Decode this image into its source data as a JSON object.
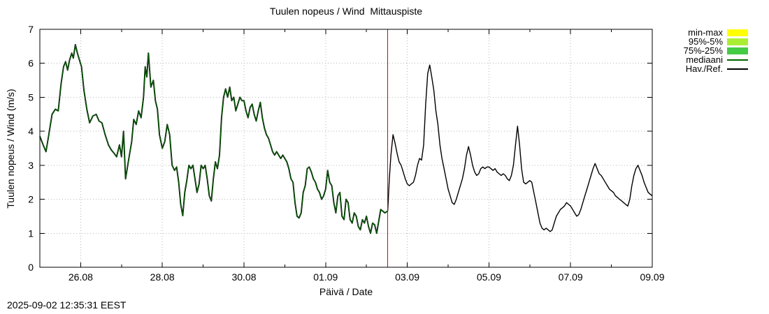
{
  "timestamp": "2025-09-02 12:35:31 EEST",
  "chart_data": {
    "type": "line",
    "title": "Tuulen nopeus / Wind  Mittauspiste",
    "xlabel": "Päivä / Date",
    "ylabel": "Tuulen nopeus / Wind (m/s)",
    "ylim": [
      0,
      7
    ],
    "yticks": [
      0,
      1,
      2,
      3,
      4,
      5,
      6,
      7
    ],
    "x_range_days": [
      0,
      15
    ],
    "x_tick_days": [
      1,
      3,
      5,
      7,
      9,
      11,
      13,
      15
    ],
    "x_tick_labels": [
      "26.08",
      "28.08",
      "30.08",
      "01.09",
      "03.09",
      "05.09",
      "07.09",
      "09.09"
    ],
    "grid": true,
    "grid_color": "#b8b8b8",
    "now_line_day": 8.52,
    "now_line_color": "#dd0000",
    "legend_position": "top-right-outside",
    "legend": [
      {
        "label": "min-max",
        "color": "#ffff00",
        "style": "band"
      },
      {
        "label": "95%-5%",
        "color": "#aaee33",
        "style": "band"
      },
      {
        "label": "75%-25%",
        "color": "#44cc44",
        "style": "band"
      },
      {
        "label": "mediaani",
        "color": "#006400",
        "style": "line"
      },
      {
        "label": "Hav./Ref.",
        "color": "#000000",
        "style": "line"
      }
    ],
    "series": [
      {
        "name": "wind_speed_m_s",
        "observation_color": "#000000",
        "median_overlay_color": "#006400",
        "forecast_color": "#000000",
        "obs_end_day": 8.52,
        "points": [
          [
            0.0,
            3.85
          ],
          [
            0.08,
            3.6
          ],
          [
            0.15,
            3.4
          ],
          [
            0.22,
            3.9
          ],
          [
            0.3,
            4.5
          ],
          [
            0.38,
            4.65
          ],
          [
            0.45,
            4.6
          ],
          [
            0.52,
            5.4
          ],
          [
            0.58,
            5.9
          ],
          [
            0.63,
            6.05
          ],
          [
            0.68,
            5.8
          ],
          [
            0.73,
            6.1
          ],
          [
            0.78,
            6.3
          ],
          [
            0.82,
            6.15
          ],
          [
            0.87,
            6.55
          ],
          [
            0.92,
            6.3
          ],
          [
            0.97,
            6.1
          ],
          [
            1.02,
            5.9
          ],
          [
            1.08,
            5.2
          ],
          [
            1.15,
            4.65
          ],
          [
            1.22,
            4.25
          ],
          [
            1.3,
            4.45
          ],
          [
            1.38,
            4.5
          ],
          [
            1.45,
            4.3
          ],
          [
            1.52,
            4.25
          ],
          [
            1.6,
            3.9
          ],
          [
            1.68,
            3.6
          ],
          [
            1.75,
            3.45
          ],
          [
            1.82,
            3.35
          ],
          [
            1.88,
            3.25
          ],
          [
            1.95,
            3.6
          ],
          [
            2.0,
            3.25
          ],
          [
            2.05,
            4.0
          ],
          [
            2.1,
            2.6
          ],
          [
            2.18,
            3.2
          ],
          [
            2.25,
            3.7
          ],
          [
            2.3,
            4.35
          ],
          [
            2.36,
            4.2
          ],
          [
            2.42,
            4.6
          ],
          [
            2.48,
            4.4
          ],
          [
            2.54,
            5.0
          ],
          [
            2.58,
            5.9
          ],
          [
            2.62,
            5.6
          ],
          [
            2.66,
            6.3
          ],
          [
            2.72,
            5.3
          ],
          [
            2.78,
            5.5
          ],
          [
            2.83,
            4.9
          ],
          [
            2.88,
            4.65
          ],
          [
            2.93,
            3.9
          ],
          [
            3.0,
            3.5
          ],
          [
            3.06,
            3.7
          ],
          [
            3.12,
            4.2
          ],
          [
            3.18,
            3.9
          ],
          [
            3.24,
            3.0
          ],
          [
            3.3,
            2.85
          ],
          [
            3.35,
            2.95
          ],
          [
            3.4,
            2.5
          ],
          [
            3.45,
            1.85
          ],
          [
            3.5,
            1.52
          ],
          [
            3.55,
            2.2
          ],
          [
            3.6,
            2.55
          ],
          [
            3.65,
            3.0
          ],
          [
            3.7,
            2.9
          ],
          [
            3.75,
            3.0
          ],
          [
            3.8,
            2.6
          ],
          [
            3.85,
            2.2
          ],
          [
            3.9,
            2.45
          ],
          [
            3.95,
            3.0
          ],
          [
            4.0,
            2.9
          ],
          [
            4.05,
            3.0
          ],
          [
            4.1,
            2.6
          ],
          [
            4.15,
            2.1
          ],
          [
            4.2,
            1.95
          ],
          [
            4.25,
            2.6
          ],
          [
            4.3,
            3.1
          ],
          [
            4.35,
            2.9
          ],
          [
            4.4,
            3.3
          ],
          [
            4.45,
            4.4
          ],
          [
            4.5,
            5.0
          ],
          [
            4.55,
            5.25
          ],
          [
            4.6,
            5.0
          ],
          [
            4.65,
            5.3
          ],
          [
            4.7,
            4.9
          ],
          [
            4.75,
            5.0
          ],
          [
            4.8,
            4.6
          ],
          [
            4.85,
            4.8
          ],
          [
            4.9,
            5.0
          ],
          [
            4.95,
            4.9
          ],
          [
            5.0,
            4.9
          ],
          [
            5.05,
            4.6
          ],
          [
            5.1,
            4.4
          ],
          [
            5.15,
            4.7
          ],
          [
            5.2,
            4.8
          ],
          [
            5.25,
            4.5
          ],
          [
            5.3,
            4.3
          ],
          [
            5.35,
            4.6
          ],
          [
            5.4,
            4.85
          ],
          [
            5.45,
            4.4
          ],
          [
            5.5,
            4.1
          ],
          [
            5.55,
            3.9
          ],
          [
            5.6,
            3.8
          ],
          [
            5.65,
            3.6
          ],
          [
            5.7,
            3.4
          ],
          [
            5.75,
            3.3
          ],
          [
            5.8,
            3.4
          ],
          [
            5.85,
            3.3
          ],
          [
            5.9,
            3.2
          ],
          [
            5.95,
            3.3
          ],
          [
            6.0,
            3.2
          ],
          [
            6.05,
            3.1
          ],
          [
            6.1,
            2.9
          ],
          [
            6.15,
            2.6
          ],
          [
            6.2,
            2.5
          ],
          [
            6.25,
            1.9
          ],
          [
            6.3,
            1.5
          ],
          [
            6.35,
            1.45
          ],
          [
            6.4,
            1.6
          ],
          [
            6.45,
            2.2
          ],
          [
            6.5,
            2.4
          ],
          [
            6.55,
            2.9
          ],
          [
            6.6,
            2.95
          ],
          [
            6.65,
            2.8
          ],
          [
            6.7,
            2.6
          ],
          [
            6.75,
            2.5
          ],
          [
            6.8,
            2.3
          ],
          [
            6.85,
            2.2
          ],
          [
            6.9,
            2.0
          ],
          [
            6.95,
            2.1
          ],
          [
            7.0,
            2.3
          ],
          [
            7.05,
            2.85
          ],
          [
            7.1,
            2.5
          ],
          [
            7.15,
            2.4
          ],
          [
            7.2,
            1.9
          ],
          [
            7.25,
            1.6
          ],
          [
            7.3,
            2.1
          ],
          [
            7.35,
            2.2
          ],
          [
            7.4,
            1.5
          ],
          [
            7.45,
            1.4
          ],
          [
            7.5,
            2.0
          ],
          [
            7.55,
            1.9
          ],
          [
            7.6,
            1.4
          ],
          [
            7.65,
            1.3
          ],
          [
            7.7,
            1.6
          ],
          [
            7.75,
            1.5
          ],
          [
            7.8,
            1.2
          ],
          [
            7.85,
            1.1
          ],
          [
            7.9,
            1.4
          ],
          [
            7.95,
            1.3
          ],
          [
            8.0,
            1.5
          ],
          [
            8.05,
            1.2
          ],
          [
            8.1,
            1.0
          ],
          [
            8.15,
            1.3
          ],
          [
            8.2,
            1.25
          ],
          [
            8.25,
            1.0
          ],
          [
            8.3,
            1.35
          ],
          [
            8.35,
            1.7
          ],
          [
            8.4,
            1.65
          ],
          [
            8.45,
            1.6
          ],
          [
            8.52,
            1.65
          ],
          [
            8.56,
            2.6
          ],
          [
            8.6,
            3.3
          ],
          [
            8.65,
            3.9
          ],
          [
            8.7,
            3.65
          ],
          [
            8.75,
            3.35
          ],
          [
            8.8,
            3.1
          ],
          [
            8.85,
            3.0
          ],
          [
            8.9,
            2.8
          ],
          [
            8.95,
            2.6
          ],
          [
            9.0,
            2.45
          ],
          [
            9.05,
            2.4
          ],
          [
            9.1,
            2.45
          ],
          [
            9.15,
            2.5
          ],
          [
            9.2,
            2.7
          ],
          [
            9.25,
            3.0
          ],
          [
            9.3,
            3.2
          ],
          [
            9.35,
            3.15
          ],
          [
            9.4,
            3.6
          ],
          [
            9.45,
            4.8
          ],
          [
            9.5,
            5.7
          ],
          [
            9.55,
            5.95
          ],
          [
            9.6,
            5.6
          ],
          [
            9.65,
            5.2
          ],
          [
            9.7,
            4.6
          ],
          [
            9.75,
            4.2
          ],
          [
            9.8,
            3.6
          ],
          [
            9.85,
            3.2
          ],
          [
            9.9,
            2.9
          ],
          [
            9.95,
            2.6
          ],
          [
            10.0,
            2.3
          ],
          [
            10.05,
            2.1
          ],
          [
            10.1,
            1.9
          ],
          [
            10.15,
            1.85
          ],
          [
            10.2,
            2.0
          ],
          [
            10.25,
            2.2
          ],
          [
            10.3,
            2.4
          ],
          [
            10.35,
            2.6
          ],
          [
            10.4,
            2.9
          ],
          [
            10.45,
            3.3
          ],
          [
            10.5,
            3.55
          ],
          [
            10.55,
            3.3
          ],
          [
            10.6,
            3.0
          ],
          [
            10.65,
            2.8
          ],
          [
            10.7,
            2.7
          ],
          [
            10.75,
            2.75
          ],
          [
            10.8,
            2.9
          ],
          [
            10.85,
            2.95
          ],
          [
            10.9,
            2.9
          ],
          [
            10.95,
            2.95
          ],
          [
            11.0,
            2.95
          ],
          [
            11.05,
            2.9
          ],
          [
            11.1,
            2.85
          ],
          [
            11.15,
            2.9
          ],
          [
            11.2,
            2.8
          ],
          [
            11.25,
            2.75
          ],
          [
            11.3,
            2.7
          ],
          [
            11.35,
            2.75
          ],
          [
            11.4,
            2.7
          ],
          [
            11.45,
            2.6
          ],
          [
            11.5,
            2.55
          ],
          [
            11.55,
            2.7
          ],
          [
            11.6,
            3.0
          ],
          [
            11.65,
            3.6
          ],
          [
            11.7,
            4.15
          ],
          [
            11.75,
            3.6
          ],
          [
            11.8,
            2.9
          ],
          [
            11.85,
            2.5
          ],
          [
            11.9,
            2.45
          ],
          [
            11.95,
            2.5
          ],
          [
            12.0,
            2.55
          ],
          [
            12.05,
            2.5
          ],
          [
            12.1,
            2.2
          ],
          [
            12.15,
            1.9
          ],
          [
            12.2,
            1.6
          ],
          [
            12.25,
            1.3
          ],
          [
            12.3,
            1.15
          ],
          [
            12.35,
            1.1
          ],
          [
            12.4,
            1.15
          ],
          [
            12.45,
            1.1
          ],
          [
            12.5,
            1.05
          ],
          [
            12.55,
            1.1
          ],
          [
            12.6,
            1.3
          ],
          [
            12.65,
            1.5
          ],
          [
            12.7,
            1.6
          ],
          [
            12.75,
            1.7
          ],
          [
            12.8,
            1.75
          ],
          [
            12.85,
            1.8
          ],
          [
            12.9,
            1.9
          ],
          [
            12.95,
            1.85
          ],
          [
            13.0,
            1.8
          ],
          [
            13.05,
            1.7
          ],
          [
            13.1,
            1.6
          ],
          [
            13.15,
            1.5
          ],
          [
            13.2,
            1.55
          ],
          [
            13.25,
            1.7
          ],
          [
            13.3,
            1.9
          ],
          [
            13.35,
            2.1
          ],
          [
            13.4,
            2.3
          ],
          [
            13.45,
            2.5
          ],
          [
            13.5,
            2.7
          ],
          [
            13.55,
            2.9
          ],
          [
            13.6,
            3.05
          ],
          [
            13.65,
            2.9
          ],
          [
            13.7,
            2.75
          ],
          [
            13.75,
            2.7
          ],
          [
            13.8,
            2.6
          ],
          [
            13.85,
            2.5
          ],
          [
            13.9,
            2.4
          ],
          [
            13.95,
            2.3
          ],
          [
            14.0,
            2.25
          ],
          [
            14.05,
            2.2
          ],
          [
            14.1,
            2.1
          ],
          [
            14.15,
            2.05
          ],
          [
            14.2,
            2.0
          ],
          [
            14.25,
            1.95
          ],
          [
            14.3,
            1.9
          ],
          [
            14.35,
            1.85
          ],
          [
            14.4,
            1.8
          ],
          [
            14.45,
            2.0
          ],
          [
            14.5,
            2.4
          ],
          [
            14.55,
            2.7
          ],
          [
            14.6,
            2.9
          ],
          [
            14.65,
            3.0
          ],
          [
            14.7,
            2.85
          ],
          [
            14.75,
            2.7
          ],
          [
            14.8,
            2.5
          ],
          [
            14.85,
            2.35
          ],
          [
            14.9,
            2.2
          ],
          [
            14.95,
            2.15
          ],
          [
            15.0,
            2.1
          ]
        ]
      }
    ]
  }
}
